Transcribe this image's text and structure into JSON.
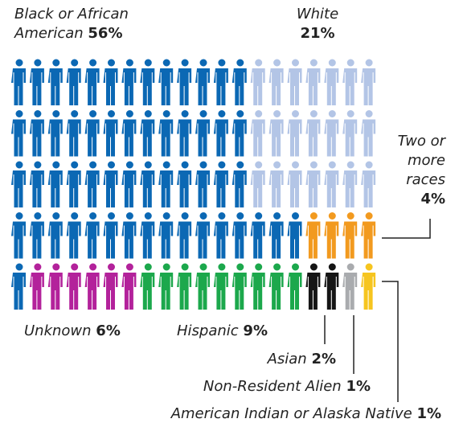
{
  "chart_data": {
    "type": "isotype",
    "categories": [
      "Black or African American",
      "White",
      "Two or more races",
      "Unknown",
      "Hispanic",
      "Asian",
      "Non-Resident Alien",
      "American Indian or Alaska Native"
    ],
    "values": [
      56,
      21,
      4,
      6,
      9,
      2,
      1,
      1
    ],
    "value_labels": [
      "56%",
      "21%",
      "4%",
      "6%",
      "9%",
      "2%",
      "1%",
      "1%"
    ],
    "colors": [
      "#0b68b4",
      "#b3c5e6",
      "#f29a1f",
      "#b3229b",
      "#1ca84c",
      "#151515",
      "#a9abae",
      "#f6c51f"
    ]
  }
}
